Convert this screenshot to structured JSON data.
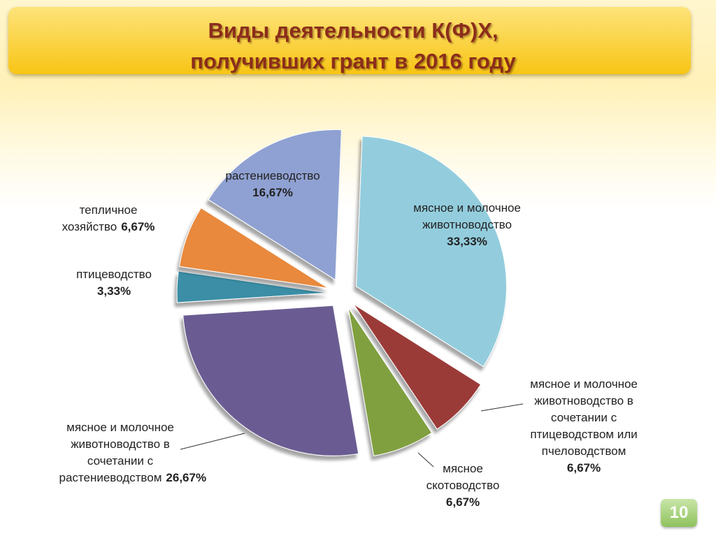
{
  "page_number": "10",
  "chart_data": {
    "type": "pie",
    "title": "Виды деятельности К(Ф)Х, получивших грант в 2016 году",
    "categories": [
      "мясное и молочное животноводство",
      "мясное и молочное животноводство в сочетании с птицеводством или пчеловодством",
      "мясное скотоводство",
      "мясное и молочное животноводство в сочетании с растениеводством",
      "птицеводство",
      "тепличное хозяйство",
      "растениеводство"
    ],
    "values": [
      33.33,
      6.67,
      6.67,
      26.67,
      3.33,
      6.67,
      16.67
    ],
    "value_labels": [
      "33,33%",
      "6,67%",
      "6,67%",
      "26,67%",
      "3,33%",
      "6,67%",
      "16,67%"
    ],
    "colors": [
      "#93cddd",
      "#9b3b38",
      "#80a040",
      "#6b5b92",
      "#3a8ea6",
      "#e8893e",
      "#8fa1d2"
    ]
  }
}
